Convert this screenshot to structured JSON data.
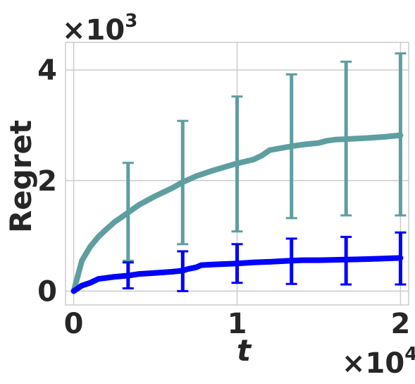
{
  "chart_data": {
    "type": "line",
    "title": "",
    "xlabel": "t",
    "ylabel": "Regret",
    "x_multiplier": "×10",
    "x_multiplier_exp": "4",
    "y_multiplier": "×10",
    "y_multiplier_exp": "3",
    "xlim": [
      -0.05,
      2.05
    ],
    "ylim": [
      -0.25,
      4.5
    ],
    "x_ticks": [
      0,
      1,
      2
    ],
    "x_tick_labels": [
      "0",
      "1",
      "2"
    ],
    "y_ticks": [
      0,
      2,
      4
    ],
    "y_tick_labels": [
      "0",
      "2",
      "4"
    ],
    "grid": true,
    "series": [
      {
        "color": "#5f9ea0",
        "x": [
          0,
          0.05,
          0.1,
          0.15,
          0.2,
          0.25,
          0.333,
          0.4,
          0.5,
          0.6,
          0.667,
          0.75,
          0.85,
          1.0,
          1.1,
          1.15,
          1.2,
          1.333,
          1.4,
          1.5,
          1.55,
          1.6,
          1.667,
          1.8,
          1.9,
          2.0
        ],
        "values": [
          0,
          0.55,
          0.8,
          0.98,
          1.12,
          1.25,
          1.42,
          1.56,
          1.72,
          1.86,
          1.97,
          2.08,
          2.18,
          2.31,
          2.38,
          2.45,
          2.55,
          2.62,
          2.65,
          2.68,
          2.72,
          2.74,
          2.75,
          2.77,
          2.79,
          2.82
        ],
        "error_bars": [
          {
            "x": 0.333,
            "low": 0.55,
            "high": 2.32
          },
          {
            "x": 0.667,
            "low": 0.85,
            "high": 3.08
          },
          {
            "x": 1.0,
            "low": 1.08,
            "high": 3.52
          },
          {
            "x": 1.333,
            "low": 1.32,
            "high": 3.92
          },
          {
            "x": 1.667,
            "low": 1.37,
            "high": 4.15
          },
          {
            "x": 2.0,
            "low": 1.37,
            "high": 4.3
          }
        ]
      },
      {
        "color": "#0000ff",
        "x": [
          0,
          0.05,
          0.1,
          0.15,
          0.25,
          0.333,
          0.4,
          0.5,
          0.6,
          0.667,
          0.7,
          0.75,
          0.78,
          0.85,
          1.0,
          1.1,
          1.2,
          1.333,
          1.4,
          1.5,
          1.667,
          1.8,
          1.9,
          2.0
        ],
        "values": [
          0,
          0.1,
          0.15,
          0.22,
          0.26,
          0.28,
          0.31,
          0.33,
          0.35,
          0.37,
          0.4,
          0.43,
          0.47,
          0.48,
          0.5,
          0.52,
          0.53,
          0.55,
          0.56,
          0.56,
          0.57,
          0.58,
          0.59,
          0.6
        ],
        "error_bars": [
          {
            "x": 0.333,
            "low": 0.05,
            "high": 0.52
          },
          {
            "x": 0.667,
            "low": 0.0,
            "high": 0.72
          },
          {
            "x": 1.0,
            "low": 0.15,
            "high": 0.85
          },
          {
            "x": 1.333,
            "low": 0.13,
            "high": 0.95
          },
          {
            "x": 1.667,
            "low": 0.12,
            "high": 0.98
          },
          {
            "x": 2.0,
            "low": 0.12,
            "high": 1.06
          }
        ]
      }
    ]
  }
}
